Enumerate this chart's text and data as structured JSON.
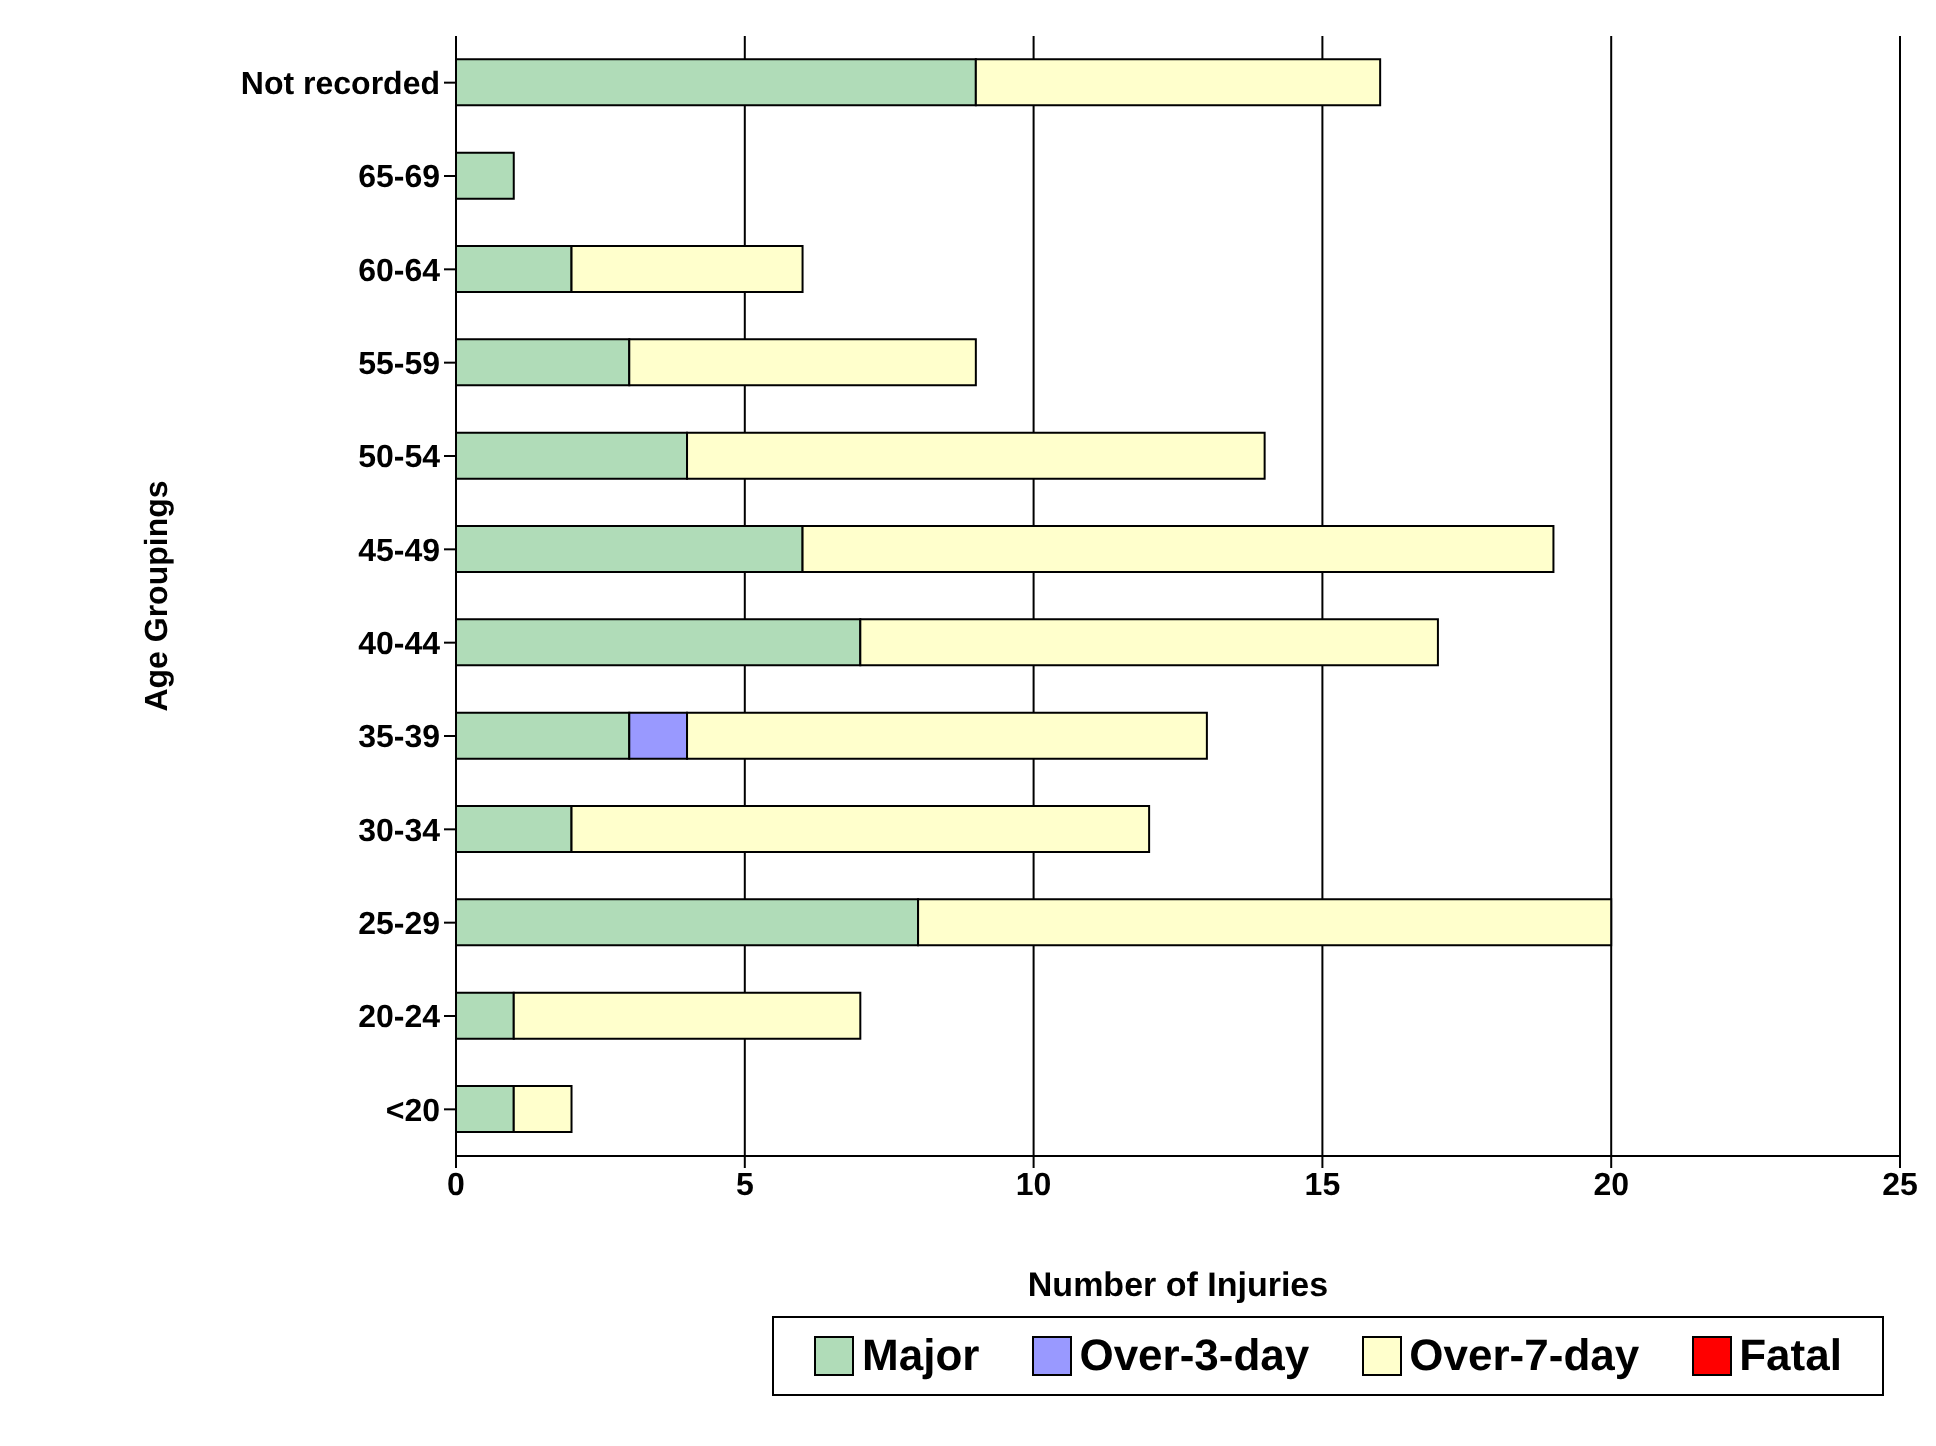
{
  "chart_data": {
    "type": "bar",
    "orientation": "horizontal",
    "stacked": true,
    "xlabel": "Number of Injuries",
    "ylabel": "Age Groupings",
    "categories": [
      "Not recorded",
      "65-69",
      "60-64",
      "55-59",
      "50-54",
      "45-49",
      "40-44",
      "35-39",
      "30-34",
      "25-29",
      "20-24",
      "<20"
    ],
    "series": [
      {
        "name": "Major",
        "color": "#b0dcb8",
        "values": [
          9,
          1,
          2,
          3,
          4,
          6,
          7,
          3,
          2,
          8,
          1,
          1
        ]
      },
      {
        "name": "Over-3-day",
        "color": "#9999ff",
        "values": [
          0,
          0,
          0,
          0,
          0,
          0,
          0,
          1,
          0,
          0,
          0,
          0
        ]
      },
      {
        "name": "Over-7-day",
        "color": "#ffffcc",
        "values": [
          7,
          0,
          4,
          6,
          10,
          13,
          10,
          9,
          10,
          12,
          6,
          1
        ]
      },
      {
        "name": "Fatal",
        "color": "#ff0000",
        "values": [
          0,
          0,
          0,
          0,
          0,
          0,
          0,
          0,
          0,
          0,
          0,
          0
        ]
      }
    ],
    "xlim": [
      0,
      25
    ],
    "xticks": [
      0,
      5,
      10,
      15,
      20,
      25
    ],
    "grid": "x",
    "legend": "bottom"
  }
}
